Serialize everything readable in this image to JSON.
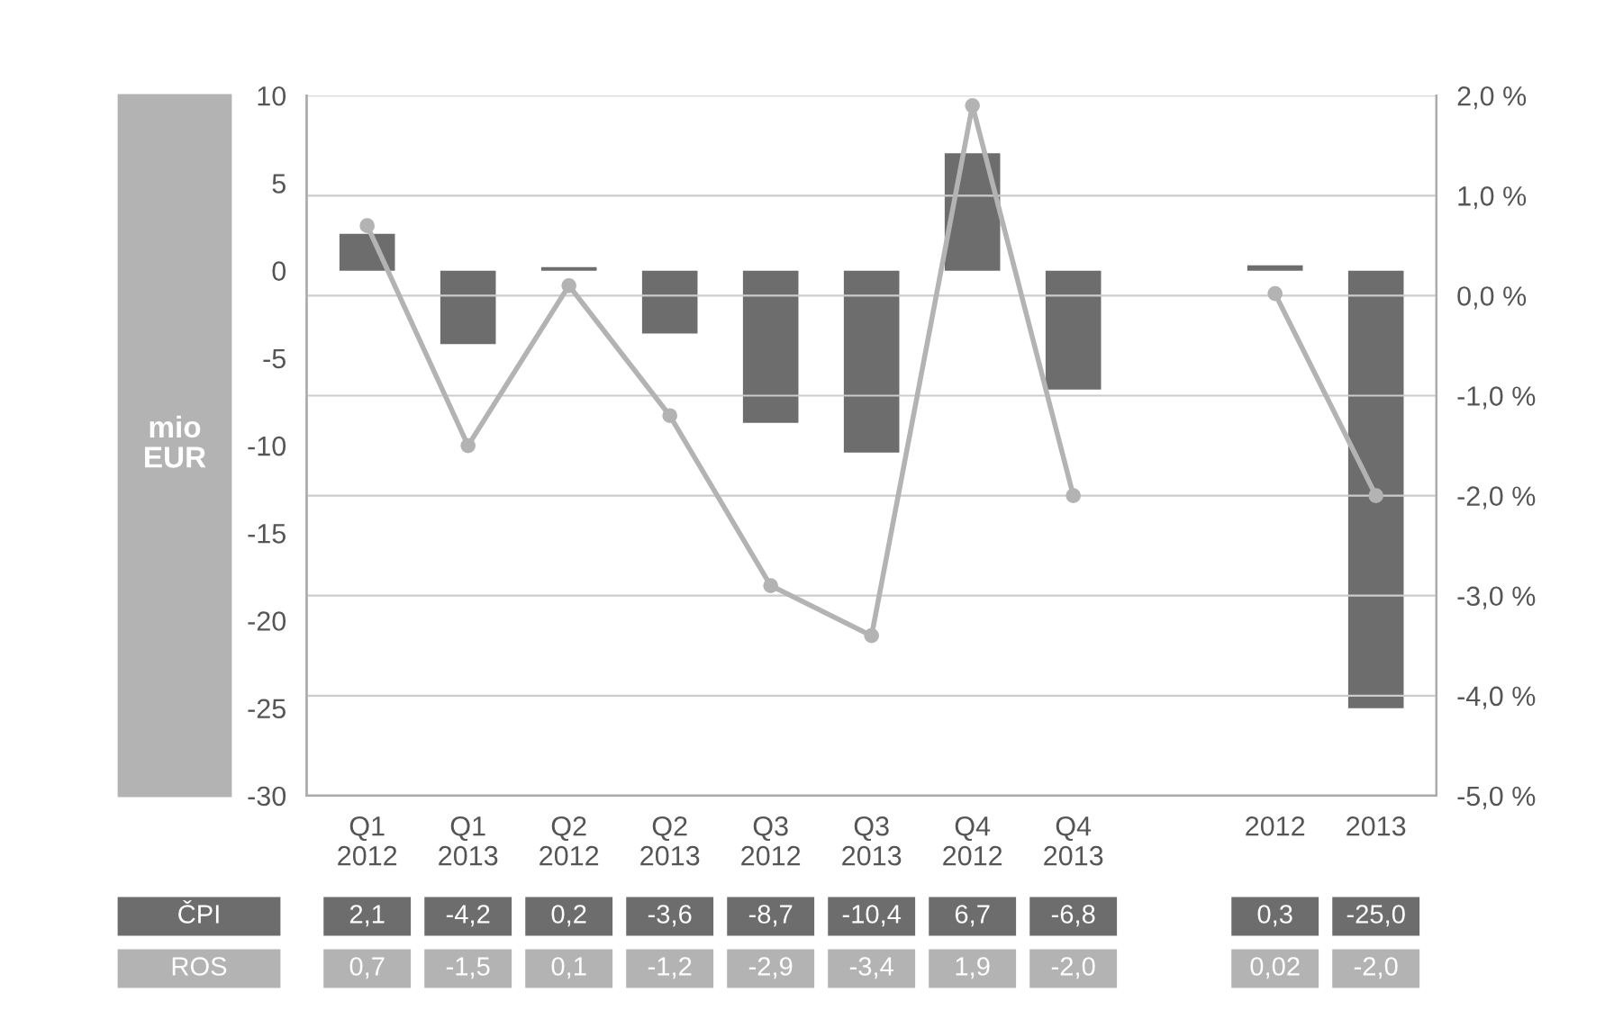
{
  "chart_data": {
    "type": "bar",
    "ylabel": "mio EUR",
    "categories": [
      "Q1\n2012",
      "Q1\n2013",
      "Q2\n2012",
      "Q2\n2013",
      "Q3\n2012",
      "Q3\n2013",
      "Q4\n2012",
      "Q4\n2013",
      null,
      "2012",
      "2013"
    ],
    "series": [
      {
        "name": "ČPI",
        "color": "#6d6d6d",
        "values": [
          2.1,
          -4.2,
          0.2,
          -3.6,
          -8.7,
          -10.4,
          6.7,
          -6.8,
          null,
          0.3,
          -25.0
        ],
        "value_labels": [
          "2,1",
          "-4,2",
          "0,2",
          "-3,6",
          "-8,7",
          "-10,4",
          "6,7",
          "-6,8",
          null,
          "0,3",
          "-25,0"
        ]
      },
      {
        "name": "ROS",
        "type": "line",
        "axis": "y2",
        "color": "#b3b3b3",
        "marker": "circle",
        "values": [
          0.7,
          -1.5,
          0.1,
          -1.2,
          -2.9,
          -3.4,
          1.9,
          -2.0,
          null,
          0.02,
          -2.0
        ],
        "value_labels": [
          "0,7",
          "-1,5",
          "0,1",
          "-1,2",
          "-2,9",
          "-3,4",
          "1,9",
          "-2,0",
          null,
          "0,02",
          "-2,0"
        ]
      }
    ],
    "ylim": [
      -30,
      10
    ],
    "yticks": [
      -30,
      -25,
      -20,
      -15,
      -10,
      -5,
      0,
      5,
      10
    ],
    "y2lim": [
      -5,
      2
    ],
    "y2ticks": [
      {
        "value": -5,
        "label": "-5,0 %"
      },
      {
        "value": -4,
        "label": "-4,0 %"
      },
      {
        "value": -3,
        "label": "-3,0 %"
      },
      {
        "value": -2,
        "label": "-2,0 %"
      },
      {
        "value": -1,
        "label": "-1,0 %"
      },
      {
        "value": 0,
        "label": "0,0 %"
      },
      {
        "value": 1,
        "label": "1,0 %"
      },
      {
        "value": 2,
        "label": "2,0 %"
      }
    ],
    "grid": "y2",
    "legend": false
  }
}
